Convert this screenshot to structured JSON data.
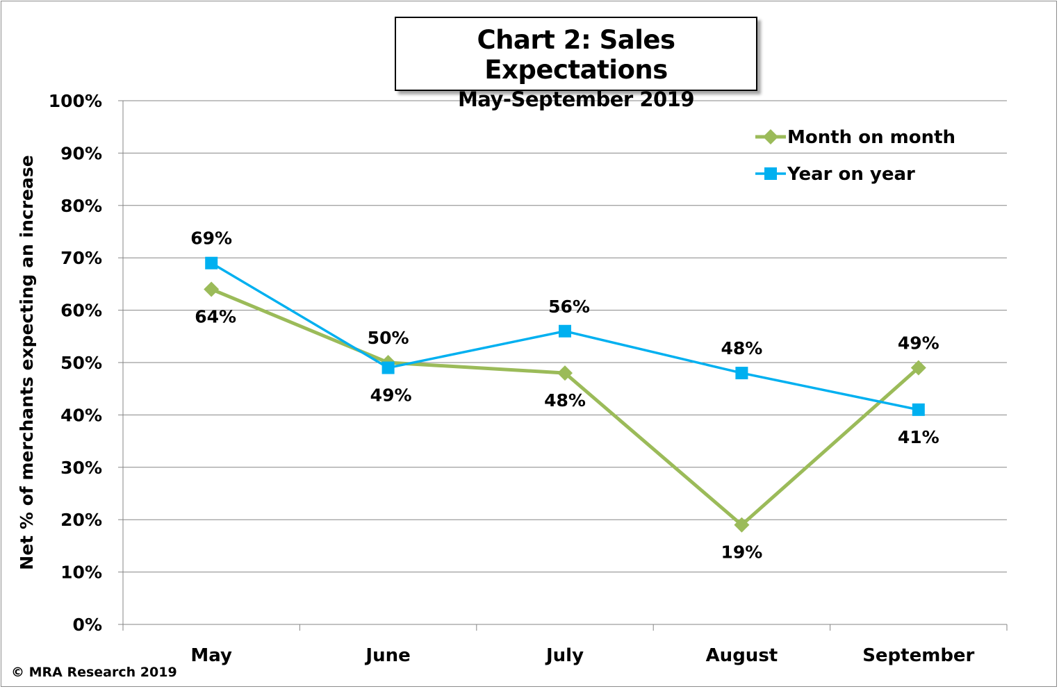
{
  "chart_data": {
    "type": "line",
    "title": "Chart 2: Sales Expectations",
    "subtitle": "May-September 2019",
    "xlabel": "",
    "ylabel": "Net % of merchants expecting an increase",
    "categories": [
      "May",
      "June",
      "July",
      "August",
      "September"
    ],
    "ylim": [
      0,
      100
    ],
    "yticks": [
      "0%",
      "10%",
      "20%",
      "30%",
      "40%",
      "50%",
      "60%",
      "70%",
      "80%",
      "90%",
      "100%"
    ],
    "grid": true,
    "legend_position": "top-right",
    "series": [
      {
        "name": "Month on month",
        "values": [
          64,
          50,
          48,
          19,
          49
        ],
        "labels": [
          "64%",
          "50%",
          "48%",
          "19%",
          "49%"
        ],
        "label_pos": [
          "below",
          "above",
          "below",
          "below",
          "above"
        ],
        "color": "#9BBB59",
        "marker": "diamond"
      },
      {
        "name": "Year on year",
        "values": [
          69,
          49,
          56,
          48,
          41
        ],
        "labels": [
          "69%",
          "49%",
          "56%",
          "48%",
          "41%"
        ],
        "label_pos": [
          "above",
          "below",
          "above",
          "above",
          "below"
        ],
        "color": "#00B0F0",
        "marker": "square"
      }
    ]
  },
  "footer": {
    "copyright": "© MRA Research 2019"
  }
}
